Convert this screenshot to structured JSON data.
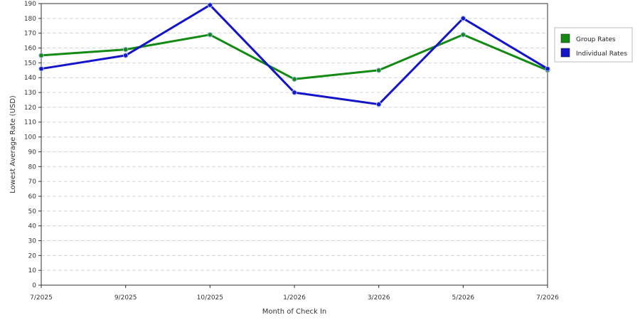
{
  "chart_data": {
    "type": "line",
    "categories": [
      "7/2025",
      "9/2025",
      "10/2025",
      "1/2026",
      "3/2026",
      "5/2026",
      "7/2026"
    ],
    "series": [
      {
        "name": "Group Rates",
        "color": "#138a13",
        "values": [
          155,
          159,
          169,
          139,
          145,
          169,
          145
        ]
      },
      {
        "name": "Individual Rates",
        "color": "#1414c8",
        "values": [
          146,
          155,
          189,
          130,
          122,
          180,
          146
        ]
      }
    ],
    "xlabel": "Month of Check In",
    "ylabel": "Lowest Average Rate (USD)",
    "ylim": [
      0,
      190
    ],
    "yticks": [
      0,
      10,
      20,
      30,
      40,
      50,
      60,
      70,
      80,
      90,
      100,
      110,
      120,
      130,
      140,
      150,
      160,
      170,
      180,
      190
    ],
    "grid": true,
    "legend": "right"
  }
}
